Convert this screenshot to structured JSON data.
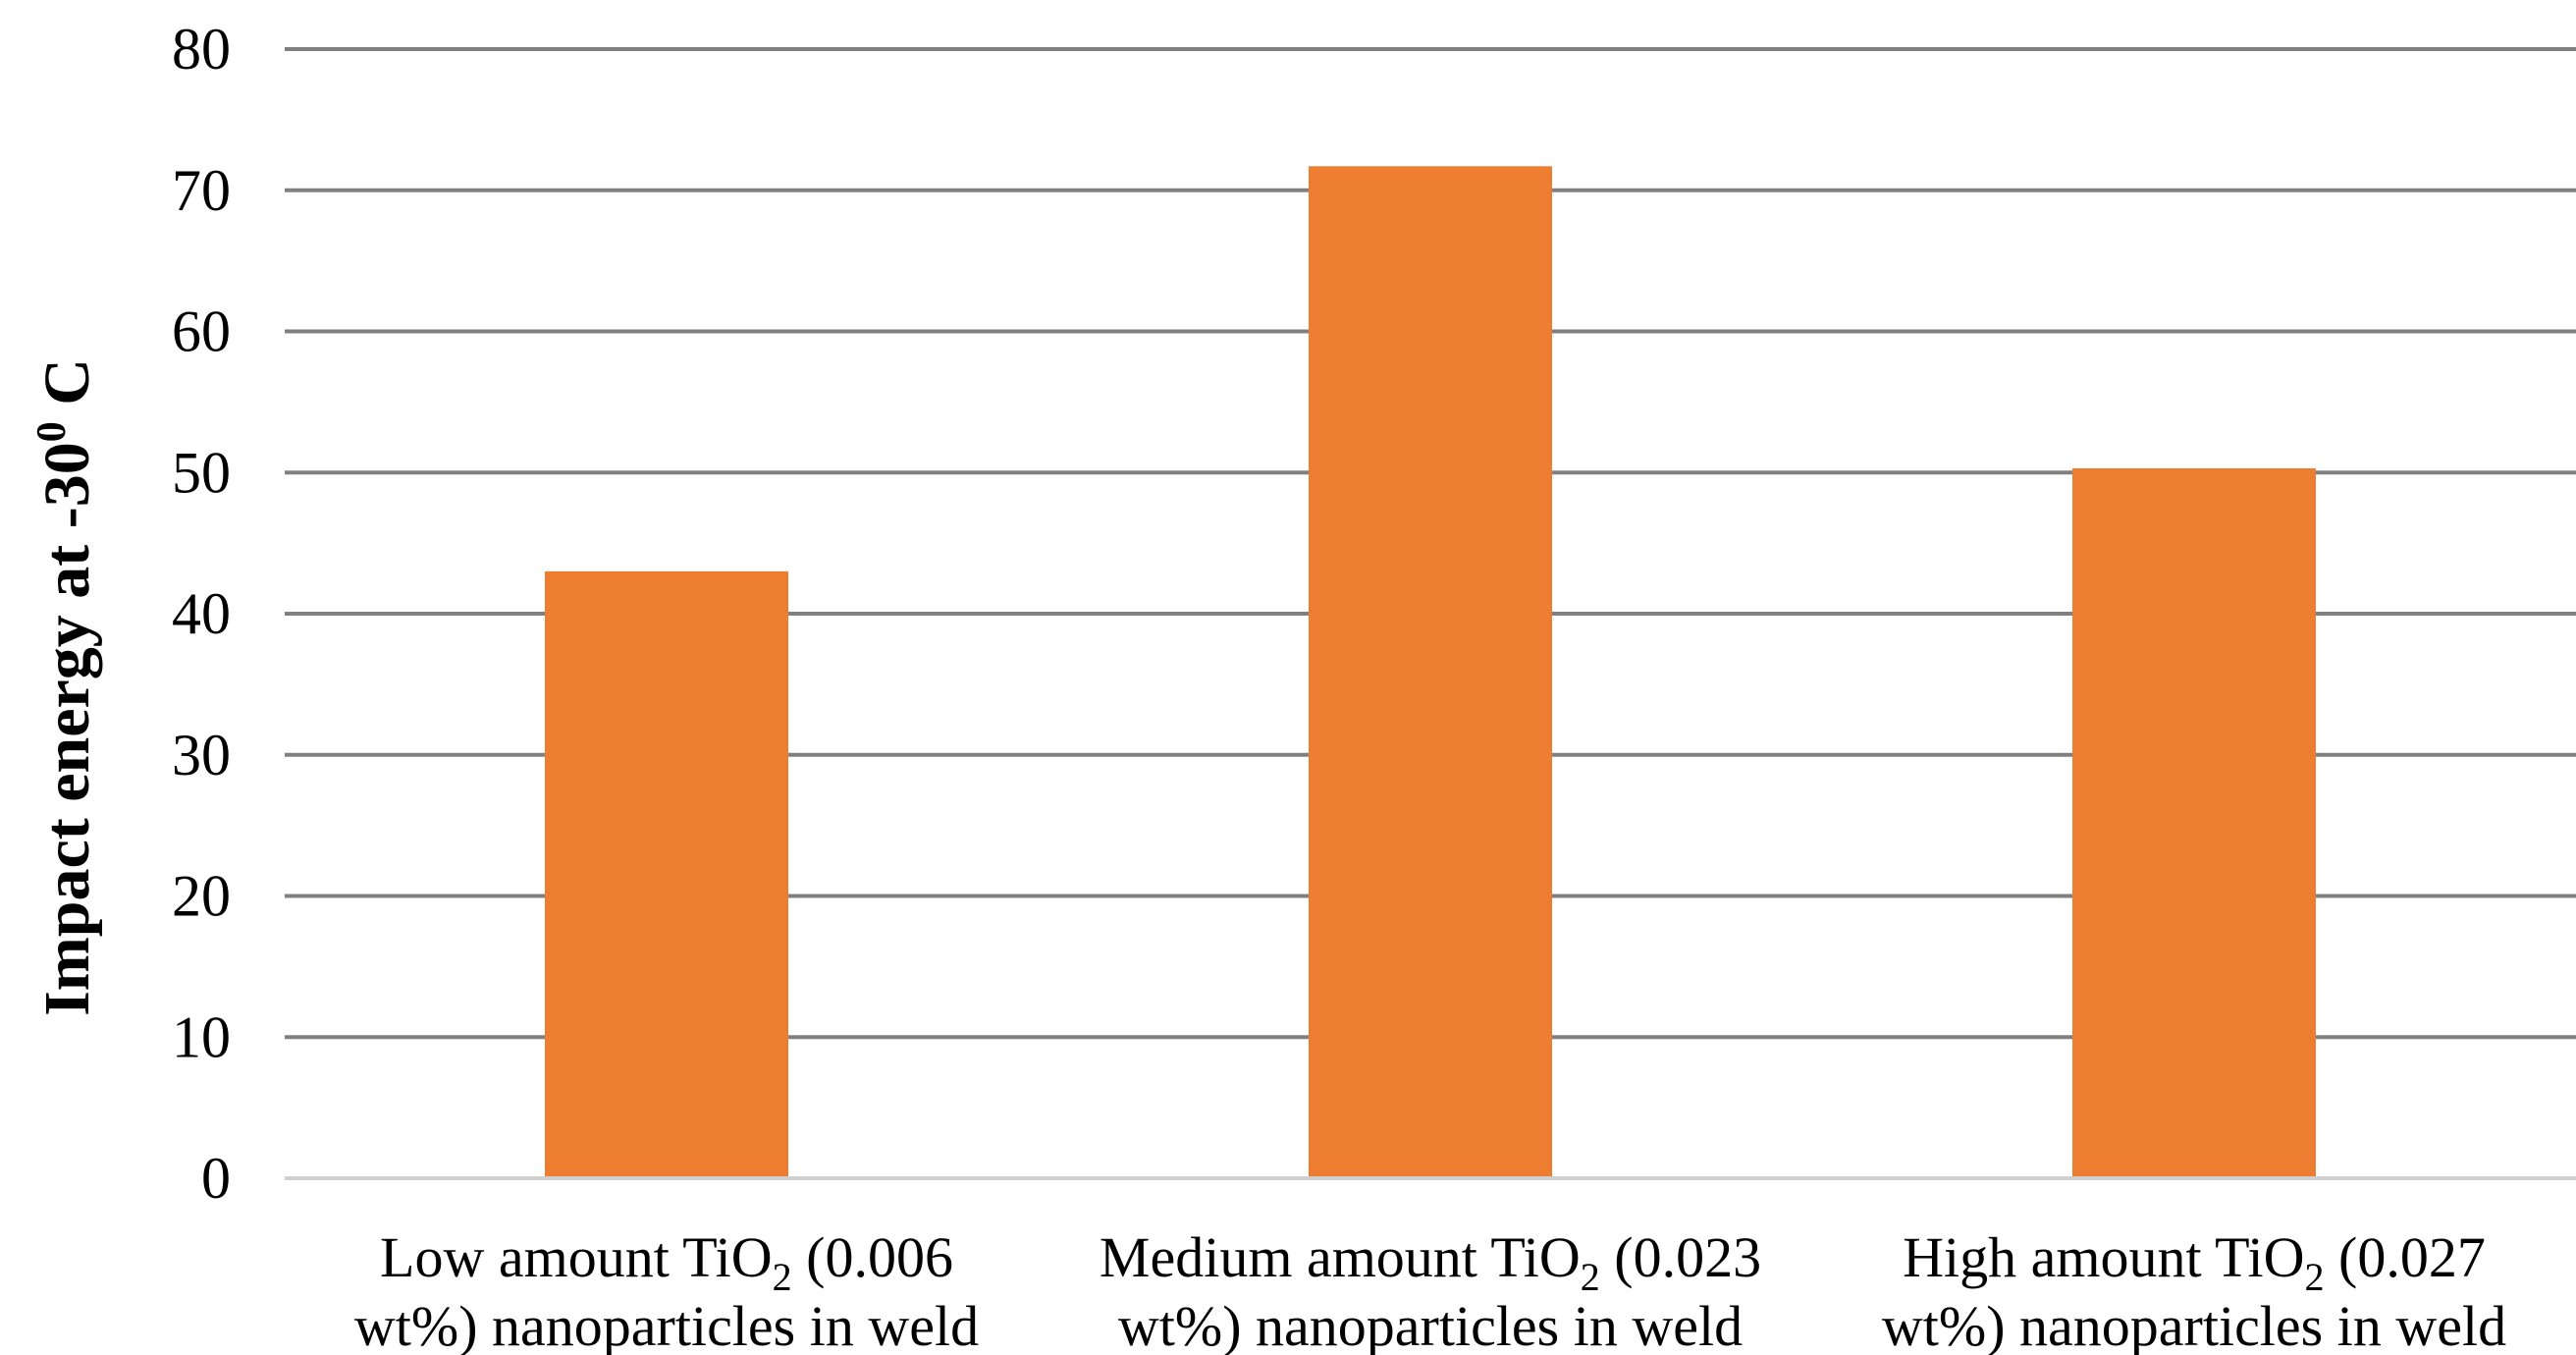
{
  "chart_data": {
    "type": "bar",
    "title": "",
    "xlabel": "",
    "ylabel": "Impact energy at -30",
    "ylabel_superscript": "0",
    "ylabel_suffix": " C",
    "ylim": [
      0,
      80
    ],
    "yticks": [
      0,
      10,
      20,
      30,
      40,
      50,
      60,
      70,
      80
    ],
    "grid": true,
    "bar_color": "#ED7D31",
    "categories": [
      {
        "line1_pre": "Low amount TiO",
        "line1_sub": "2",
        "line1_post": " (0.006",
        "line2": "wt%) nanoparticles in weld"
      },
      {
        "line1_pre": "Medium amount TiO",
        "line1_sub": "2",
        "line1_post": " (0.023",
        "line2": "wt%) nanoparticles in weld"
      },
      {
        "line1_pre": "High amount TiO",
        "line1_sub": "2",
        "line1_post": " (0.027",
        "line2": "wt%) nanoparticles in weld"
      }
    ],
    "values": [
      43,
      71.7,
      50.3
    ]
  }
}
